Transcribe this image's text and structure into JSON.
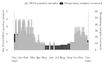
{
  "chart_data": {
    "type": "bar",
    "categories": [
      "Dec\n2001",
      null,
      null,
      null,
      "Jan",
      null,
      null,
      null,
      "Feb",
      null,
      null,
      null,
      null,
      "Mar",
      null,
      null,
      null,
      "Apr",
      null,
      null,
      null,
      "May",
      null,
      null,
      null,
      null,
      "Jun",
      null,
      null,
      null,
      "Jul",
      null,
      null,
      null,
      "Aug",
      null,
      null,
      null,
      null,
      "Sep",
      null,
      null,
      null,
      "Oct",
      null,
      null,
      null,
      "Nov",
      null,
      null,
      null,
      null,
      "Dec\n2002"
    ],
    "series": [
      {
        "name": "HKU1-positive samples",
        "color": "#c8c8c8",
        "values": [
          1,
          4,
          2,
          4,
          4,
          3,
          4,
          4,
          3,
          3,
          4,
          3,
          4,
          3,
          2,
          1,
          1,
          2,
          1,
          1,
          1,
          1,
          0,
          0,
          0,
          1,
          0,
          0,
          1,
          0,
          0,
          0,
          0,
          0,
          0,
          0,
          0,
          0,
          0,
          0,
          1,
          1,
          1,
          3,
          3,
          3,
          3,
          2,
          3,
          3,
          2,
          2,
          1
        ]
      },
      {
        "name": "Respiratory samples screened",
        "color": "#2a2a2a",
        "axis": "y2",
        "values": [
          25,
          45,
          25,
          45,
          45,
          30,
          45,
          45,
          30,
          25,
          45,
          25,
          35,
          25,
          20,
          12,
          10,
          15,
          10,
          10,
          10,
          10,
          7,
          7,
          7,
          10,
          7,
          7,
          10,
          7,
          7,
          7,
          7,
          8,
          8,
          8,
          8,
          8,
          10,
          10,
          12,
          12,
          12,
          25,
          28,
          30,
          30,
          20,
          28,
          28,
          20,
          22,
          15
        ]
      }
    ],
    "ylabel": "No. HCoV-HKU1-positive samples",
    "y2label": "Respiratory samples screened",
    "ylim": [
      0,
      5
    ],
    "yticks": [
      0,
      1,
      2,
      3,
      4,
      5
    ],
    "y2lim": [
      0,
      60
    ],
    "y2ticks": [
      0,
      10,
      20,
      30,
      40,
      50,
      60
    ],
    "legend": "upper right",
    "grid": false
  }
}
